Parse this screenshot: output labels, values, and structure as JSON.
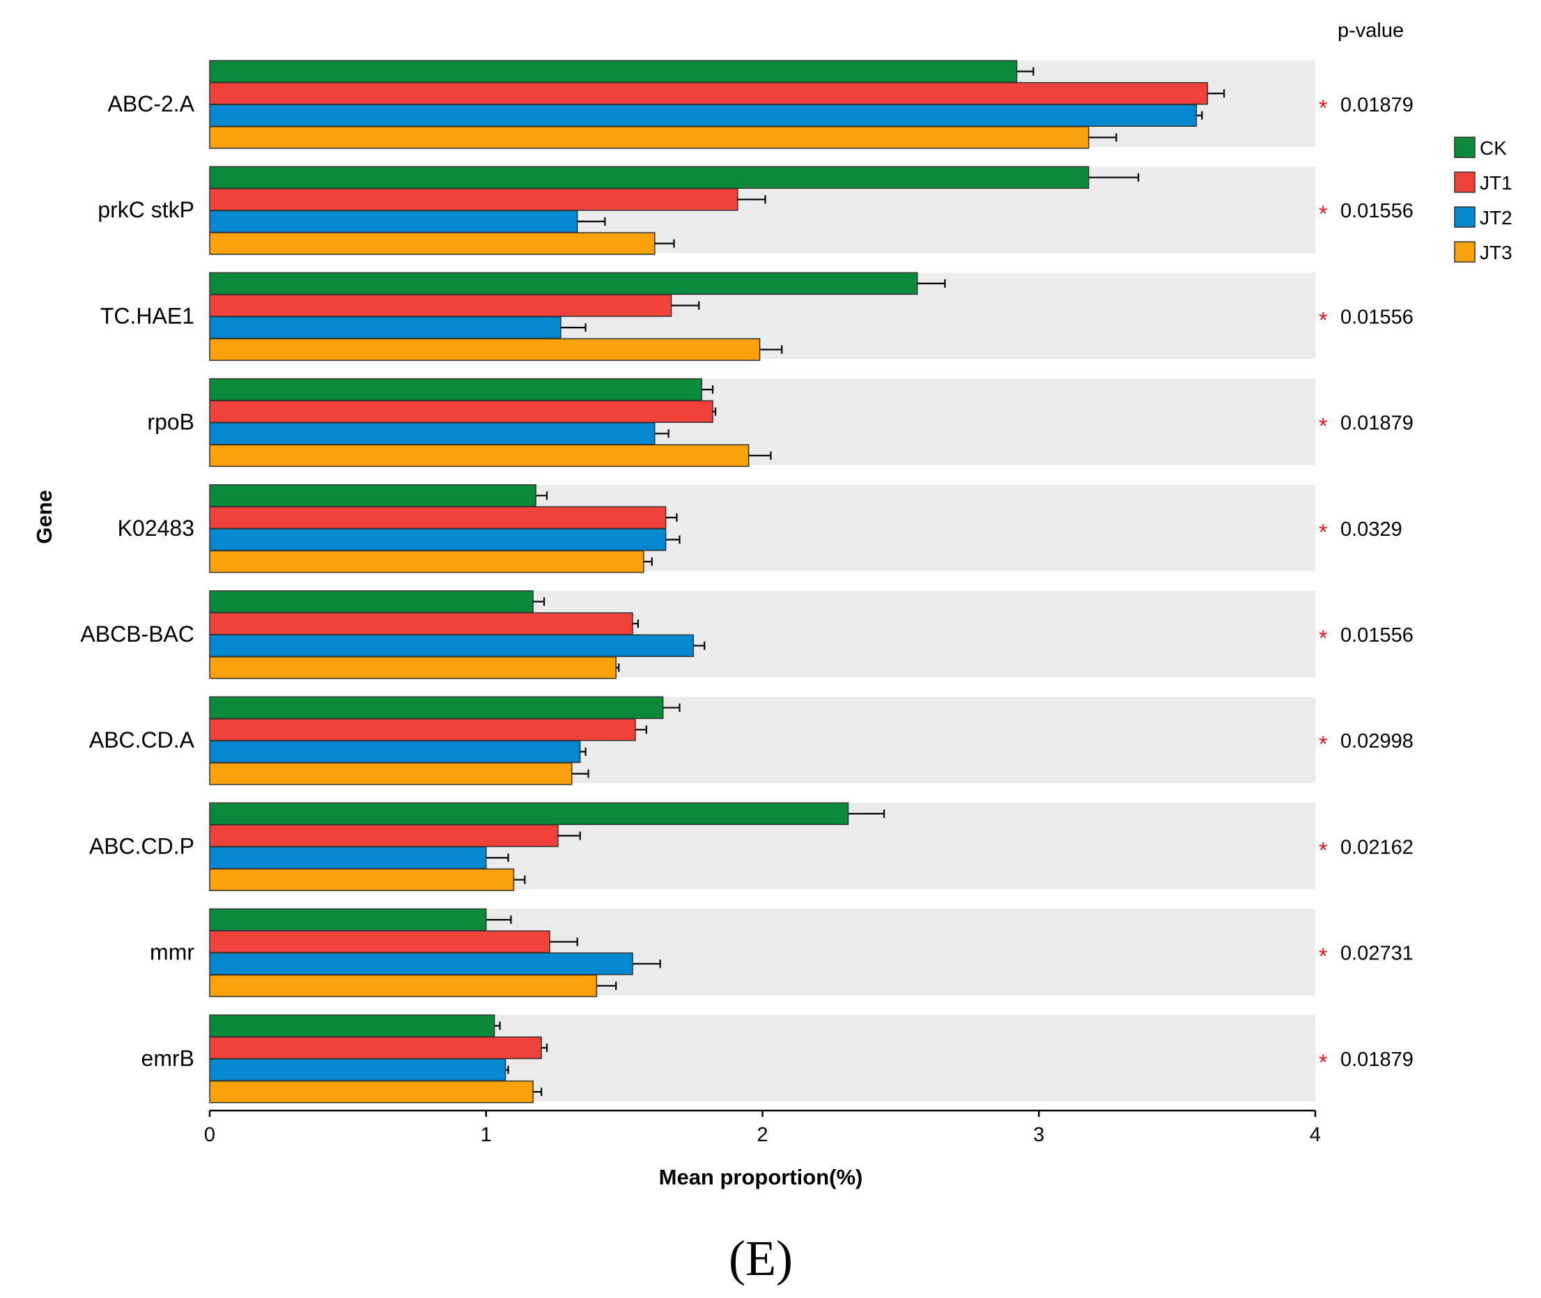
{
  "chart_data": {
    "type": "bar",
    "orientation": "horizontal",
    "xlabel": "Mean proportion(%)",
    "ylabel": "Gene",
    "xlim": [
      0,
      4
    ],
    "xticks": [
      0,
      1,
      2,
      3,
      4
    ],
    "pvalue_header": "p-value",
    "caption": "(E)",
    "significance_marker": "*",
    "legend_position": "right",
    "categories": [
      "ABC-2.A",
      "prkC stkP",
      "TC.HAE1",
      "rpoB",
      "K02483",
      "ABCB-BAC",
      "ABC.CD.A",
      "ABC.CD.P",
      "mmr",
      "emrB"
    ],
    "pvalues": [
      "0.01879",
      "0.01556",
      "0.01556",
      "0.01879",
      "0.0329",
      "0.01556",
      "0.02998",
      "0.02162",
      "0.02731",
      "0.01879"
    ],
    "series": [
      {
        "name": "CK",
        "color": "#0a8a3a",
        "values": [
          2.92,
          3.18,
          2.56,
          1.78,
          1.18,
          1.17,
          1.64,
          2.31,
          1.0,
          1.03
        ],
        "errors": [
          0.06,
          0.18,
          0.1,
          0.04,
          0.04,
          0.04,
          0.06,
          0.13,
          0.09,
          0.02
        ]
      },
      {
        "name": "JT1",
        "color": "#f0413a",
        "values": [
          3.61,
          1.91,
          1.67,
          1.82,
          1.65,
          1.53,
          1.54,
          1.26,
          1.23,
          1.2
        ],
        "errors": [
          0.06,
          0.1,
          0.1,
          0.01,
          0.04,
          0.02,
          0.04,
          0.08,
          0.1,
          0.02
        ]
      },
      {
        "name": "JT2",
        "color": "#0688d1",
        "values": [
          3.57,
          1.33,
          1.27,
          1.61,
          1.65,
          1.75,
          1.34,
          1.0,
          1.53,
          1.07
        ],
        "errors": [
          0.02,
          0.1,
          0.09,
          0.05,
          0.05,
          0.04,
          0.02,
          0.08,
          0.1,
          0.01
        ]
      },
      {
        "name": "JT3",
        "color": "#f9a10a",
        "values": [
          3.18,
          1.61,
          1.99,
          1.95,
          1.57,
          1.47,
          1.31,
          1.1,
          1.4,
          1.17
        ],
        "errors": [
          0.1,
          0.07,
          0.08,
          0.08,
          0.03,
          0.01,
          0.06,
          0.04,
          0.07,
          0.03
        ]
      }
    ]
  }
}
